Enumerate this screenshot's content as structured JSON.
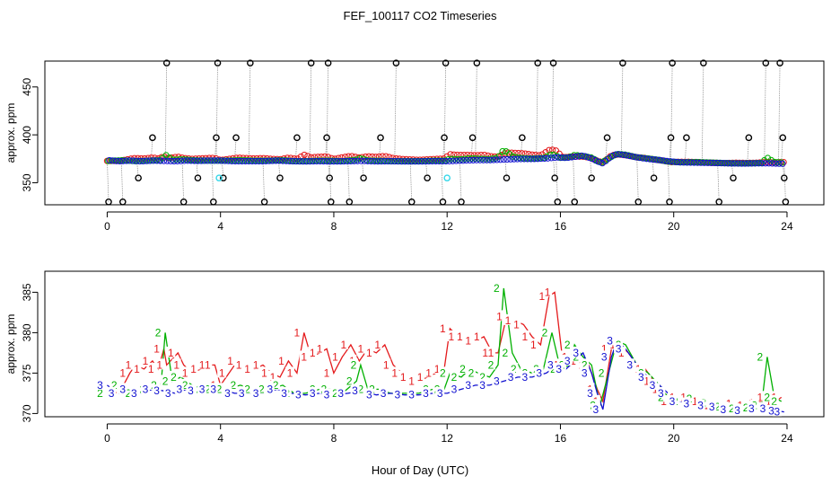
{
  "title": "FEF_100117  CO2 Timeseries",
  "xlabel": "Hour of Day (UTC)",
  "colors": {
    "red": "#e41a1c",
    "green": "#00b000",
    "blue": "#1010d0",
    "black": "#000000",
    "cyan": "#33d6e8",
    "gray": "#9a9a9a"
  },
  "chart_data": [
    {
      "type": "scatter",
      "name": "top-panel",
      "ylabel": "approx. ppm",
      "xlim": [
        -2.2,
        25.3
      ],
      "ylim": [
        327,
        477
      ],
      "xticks": [
        "0",
        "4",
        "8",
        "12",
        "16",
        "20",
        "24"
      ],
      "yticks": [
        "350",
        "400",
        "450"
      ],
      "spikes": [
        {
          "x": 0.05,
          "y": 330
        },
        {
          "x": 0.55,
          "y": 330
        },
        {
          "x": 1.1,
          "y": 355
        },
        {
          "x": 1.6,
          "y": 397
        },
        {
          "x": 2.1,
          "y": 475
        },
        {
          "x": 2.7,
          "y": 330
        },
        {
          "x": 3.2,
          "y": 355
        },
        {
          "x": 3.75,
          "y": 330
        },
        {
          "x": 3.85,
          "y": 397
        },
        {
          "x": 3.9,
          "y": 475
        },
        {
          "x": 4.1,
          "y": 355
        },
        {
          "x": 4.55,
          "y": 397
        },
        {
          "x": 5.05,
          "y": 475
        },
        {
          "x": 5.55,
          "y": 330
        },
        {
          "x": 6.1,
          "y": 355
        },
        {
          "x": 6.7,
          "y": 397
        },
        {
          "x": 7.2,
          "y": 475
        },
        {
          "x": 7.75,
          "y": 397
        },
        {
          "x": 7.8,
          "y": 475
        },
        {
          "x": 7.85,
          "y": 355
        },
        {
          "x": 7.9,
          "y": 330
        },
        {
          "x": 8.55,
          "y": 330
        },
        {
          "x": 9.05,
          "y": 355
        },
        {
          "x": 9.65,
          "y": 397
        },
        {
          "x": 10.2,
          "y": 475
        },
        {
          "x": 10.75,
          "y": 330
        },
        {
          "x": 11.3,
          "y": 355
        },
        {
          "x": 11.85,
          "y": 330
        },
        {
          "x": 11.9,
          "y": 397
        },
        {
          "x": 11.95,
          "y": 475
        },
        {
          "x": 12.5,
          "y": 330
        },
        {
          "x": 12.9,
          "y": 397
        },
        {
          "x": 13.05,
          "y": 475
        },
        {
          "x": 14.1,
          "y": 355
        },
        {
          "x": 14.65,
          "y": 397
        },
        {
          "x": 15.2,
          "y": 475
        },
        {
          "x": 15.75,
          "y": 475
        },
        {
          "x": 15.8,
          "y": 355
        },
        {
          "x": 15.9,
          "y": 330
        },
        {
          "x": 16.5,
          "y": 330
        },
        {
          "x": 17.1,
          "y": 355
        },
        {
          "x": 17.65,
          "y": 397
        },
        {
          "x": 18.2,
          "y": 475
        },
        {
          "x": 18.75,
          "y": 330
        },
        {
          "x": 19.3,
          "y": 355
        },
        {
          "x": 19.85,
          "y": 330
        },
        {
          "x": 19.9,
          "y": 397
        },
        {
          "x": 19.95,
          "y": 475
        },
        {
          "x": 20.45,
          "y": 397
        },
        {
          "x": 21.05,
          "y": 475
        },
        {
          "x": 21.6,
          "y": 330
        },
        {
          "x": 22.1,
          "y": 355
        },
        {
          "x": 22.65,
          "y": 397
        },
        {
          "x": 23.25,
          "y": 475
        },
        {
          "x": 23.75,
          "y": 475
        },
        {
          "x": 23.85,
          "y": 397
        },
        {
          "x": 23.9,
          "y": 355
        },
        {
          "x": 23.95,
          "y": 330
        }
      ],
      "cyan_points": [
        {
          "x": 3.95,
          "y": 355
        },
        {
          "x": 12.0,
          "y": 355
        }
      ]
    },
    {
      "type": "line",
      "name": "bottom-panel",
      "ylabel": "approx. ppm",
      "xlim": [
        -2.2,
        25.3
      ],
      "ylim": [
        369.6,
        387.6
      ],
      "xticks": [
        "0",
        "4",
        "8",
        "12",
        "16",
        "20",
        "24"
      ],
      "yticks": [
        "370",
        "375",
        "380",
        "385"
      ],
      "series": [
        {
          "name": "1",
          "color": "red",
          "points": [
            [
              0.0,
              372.5
            ],
            [
              0.5,
              373.0
            ],
            [
              0.8,
              375.0
            ],
            [
              1.0,
              376.0
            ],
            [
              1.3,
              375.5
            ],
            [
              1.6,
              376.5
            ],
            [
              1.8,
              375.5
            ],
            [
              2.0,
              378.0
            ],
            [
              2.1,
              376.0
            ],
            [
              2.5,
              377.5
            ],
            [
              2.7,
              376.0
            ],
            [
              3.0,
              375.0
            ],
            [
              3.3,
              375.5
            ],
            [
              3.6,
              376.0
            ],
            [
              3.8,
              376.0
            ],
            [
              4.0,
              373.5
            ],
            [
              4.3,
              375.0
            ],
            [
              4.6,
              376.5
            ],
            [
              4.9,
              376.0
            ],
            [
              5.2,
              375.5
            ],
            [
              5.5,
              376.0
            ],
            [
              5.8,
              375.0
            ],
            [
              6.1,
              374.5
            ],
            [
              6.4,
              376.5
            ],
            [
              6.7,
              375.0
            ],
            [
              6.95,
              380.0
            ],
            [
              7.2,
              377.0
            ],
            [
              7.5,
              377.5
            ],
            [
              7.75,
              378.0
            ],
            [
              8.0,
              375.0
            ],
            [
              8.3,
              377.0
            ],
            [
              8.6,
              378.5
            ],
            [
              8.9,
              376.5
            ],
            [
              9.2,
              378.0
            ],
            [
              9.5,
              377.5
            ],
            [
              9.8,
              378.5
            ],
            [
              10.1,
              376.0
            ],
            [
              10.4,
              375.0
            ],
            [
              10.7,
              374.5
            ],
            [
              11.0,
              374.0
            ],
            [
              11.3,
              374.5
            ],
            [
              11.6,
              375.0
            ],
            [
              11.9,
              375.5
            ],
            [
              12.1,
              380.5
            ],
            [
              12.4,
              379.5
            ],
            [
              12.7,
              379.5
            ],
            [
              13.0,
              379.0
            ],
            [
              13.3,
              379.5
            ],
            [
              13.6,
              377.5
            ],
            [
              13.8,
              377.5
            ],
            [
              14.1,
              382.0
            ],
            [
              14.4,
              381.5
            ],
            [
              14.7,
              381.0
            ],
            [
              15.0,
              379.5
            ],
            [
              15.3,
              378.5
            ],
            [
              15.6,
              384.5
            ],
            [
              15.8,
              385.0
            ],
            [
              16.1,
              376.0
            ],
            [
              16.4,
              377.0
            ],
            [
              16.7,
              376.5
            ],
            [
              17.0,
              376.0
            ],
            [
              17.3,
              373.0
            ],
            [
              17.5,
              371.5
            ],
            [
              17.8,
              378.0
            ],
            [
              18.1,
              378.5
            ],
            [
              18.4,
              377.5
            ],
            [
              18.7,
              376.0
            ],
            [
              19.0,
              375.5
            ],
            [
              19.3,
              374.0
            ],
            [
              19.6,
              373.0
            ],
            [
              19.9,
              371.5
            ],
            [
              20.2,
              372.0
            ],
            [
              20.6,
              372.0
            ],
            [
              21.0,
              371.5
            ],
            [
              21.4,
              371.0
            ],
            [
              21.8,
              370.8
            ],
            [
              22.2,
              371.2
            ],
            [
              22.6,
              371.0
            ],
            [
              23.0,
              371.3
            ],
            [
              23.3,
              372.0
            ],
            [
              23.6,
              371.5
            ],
            [
              23.8,
              372.0
            ]
          ]
        },
        {
          "name": "2",
          "color": "green",
          "points": [
            [
              0.0,
              372.5
            ],
            [
              0.5,
              373.5
            ],
            [
              1.0,
              372.5
            ],
            [
              1.5,
              373.0
            ],
            [
              1.9,
              373.5
            ],
            [
              2.05,
              380.0
            ],
            [
              2.3,
              374.0
            ],
            [
              2.6,
              374.5
            ],
            [
              3.0,
              373.5
            ],
            [
              3.5,
              373.0
            ],
            [
              3.8,
              373.0
            ],
            [
              4.2,
              373.0
            ],
            [
              4.7,
              373.5
            ],
            [
              5.2,
              373.0
            ],
            [
              5.7,
              373.0
            ],
            [
              6.2,
              373.5
            ],
            [
              6.6,
              372.5
            ],
            [
              7.0,
              372.5
            ],
            [
              7.5,
              373.0
            ],
            [
              7.9,
              373.0
            ],
            [
              8.3,
              372.5
            ],
            [
              8.8,
              374.0
            ],
            [
              8.95,
              376.0
            ],
            [
              9.2,
              373.0
            ],
            [
              9.6,
              373.0
            ],
            [
              10.0,
              372.5
            ],
            [
              10.5,
              372.5
            ],
            [
              11.0,
              372.5
            ],
            [
              11.5,
              373.0
            ],
            [
              11.9,
              373.0
            ],
            [
              12.1,
              375.0
            ],
            [
              12.5,
              374.5
            ],
            [
              12.8,
              375.5
            ],
            [
              13.1,
              375.0
            ],
            [
              13.5,
              374.5
            ],
            [
              13.8,
              376.0
            ],
            [
              14.0,
              385.5
            ],
            [
              14.3,
              377.5
            ],
            [
              14.6,
              375.5
            ],
            [
              15.0,
              375.0
            ],
            [
              15.4,
              375.5
            ],
            [
              15.7,
              380.0
            ],
            [
              16.0,
              375.5
            ],
            [
              16.3,
              376.0
            ],
            [
              16.5,
              378.5
            ],
            [
              16.8,
              377.0
            ],
            [
              17.1,
              376.0
            ],
            [
              17.4,
              371.0
            ],
            [
              17.7,
              375.0
            ],
            [
              18.0,
              379.0
            ],
            [
              18.3,
              378.5
            ],
            [
              18.7,
              376.0
            ],
            [
              19.1,
              375.0
            ],
            [
              19.5,
              373.5
            ],
            [
              19.8,
              372.0
            ],
            [
              20.3,
              371.5
            ],
            [
              20.8,
              371.8
            ],
            [
              21.3,
              371.3
            ],
            [
              21.8,
              370.8
            ],
            [
              22.3,
              370.6
            ],
            [
              22.8,
              370.7
            ],
            [
              23.1,
              371.0
            ],
            [
              23.3,
              377.0
            ],
            [
              23.55,
              372.0
            ],
            [
              23.8,
              371.5
            ]
          ]
        },
        {
          "name": "3",
          "color": "blue",
          "points": [
            [
              0.0,
              373.5
            ],
            [
              0.4,
              372.5
            ],
            [
              0.8,
              373.0
            ],
            [
              1.2,
              372.5
            ],
            [
              1.6,
              373.0
            ],
            [
              2.0,
              372.8
            ],
            [
              2.4,
              372.5
            ],
            [
              2.8,
              373.0
            ],
            [
              3.2,
              372.8
            ],
            [
              3.6,
              373.0
            ],
            [
              4.0,
              373.0
            ],
            [
              4.5,
              372.5
            ],
            [
              5.0,
              372.5
            ],
            [
              5.5,
              372.5
            ],
            [
              6.0,
              373.0
            ],
            [
              6.5,
              372.5
            ],
            [
              7.0,
              372.3
            ],
            [
              7.5,
              372.5
            ],
            [
              8.0,
              372.3
            ],
            [
              8.5,
              372.5
            ],
            [
              9.0,
              372.8
            ],
            [
              9.5,
              372.3
            ],
            [
              10.0,
              372.5
            ],
            [
              10.5,
              372.3
            ],
            [
              11.0,
              372.3
            ],
            [
              11.5,
              372.5
            ],
            [
              12.0,
              372.5
            ],
            [
              12.5,
              373.0
            ],
            [
              13.0,
              373.5
            ],
            [
              13.5,
              373.5
            ],
            [
              14.0,
              374.0
            ],
            [
              14.5,
              374.5
            ],
            [
              15.0,
              374.5
            ],
            [
              15.5,
              375.0
            ],
            [
              15.9,
              376.0
            ],
            [
              16.2,
              375.5
            ],
            [
              16.5,
              376.5
            ],
            [
              16.8,
              377.5
            ],
            [
              17.1,
              375.0
            ],
            [
              17.3,
              372.5
            ],
            [
              17.5,
              370.5
            ],
            [
              17.8,
              377.0
            ],
            [
              18.0,
              379.0
            ],
            [
              18.3,
              378.0
            ],
            [
              18.7,
              376.0
            ],
            [
              19.1,
              374.5
            ],
            [
              19.5,
              373.5
            ],
            [
              19.8,
              372.5
            ],
            [
              20.2,
              371.5
            ],
            [
              20.7,
              371.2
            ],
            [
              21.2,
              371.0
            ],
            [
              21.6,
              370.8
            ],
            [
              22.0,
              370.5
            ],
            [
              22.5,
              370.4
            ],
            [
              23.0,
              370.6
            ],
            [
              23.4,
              370.6
            ],
            [
              23.7,
              370.3
            ],
            [
              23.9,
              370.2
            ]
          ]
        }
      ]
    }
  ]
}
